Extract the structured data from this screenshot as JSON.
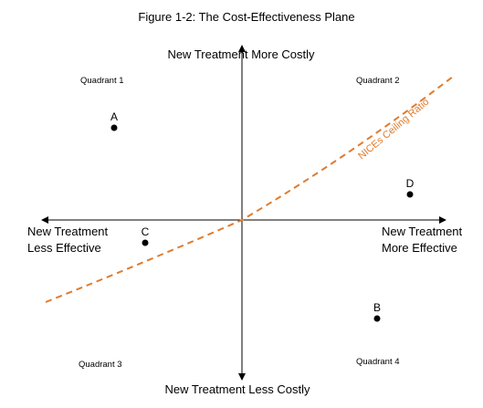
{
  "title": "Figure 1-2: The Cost-Effectiveness Plane",
  "axes": {
    "top": "New Treatment More Costly",
    "bottom": "New Treatment Less Costly",
    "left_line1": "New Treatment",
    "left_line2": "Less Effective",
    "right_line1": "New Treatment",
    "right_line2": "More Effective"
  },
  "quadrants": {
    "q1": "Quadrant 1",
    "q2": "Quadrant 2",
    "q3": "Quadrant 3",
    "q4": "Quadrant 4"
  },
  "points": {
    "a": "A",
    "b": "B",
    "c": "C",
    "d": "D"
  },
  "ceiling_ratio": {
    "label": "NICEs Ceiling Ratio",
    "color": "#E07B2E"
  }
}
